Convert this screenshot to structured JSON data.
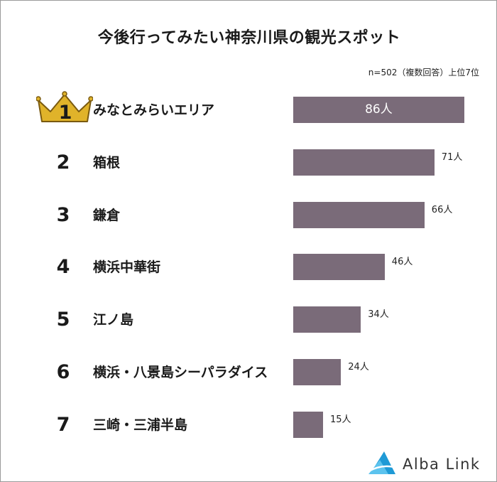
{
  "title": "今後行ってみたい神奈川県の観光スポット",
  "note": "n=502（複数回答）上位7位",
  "brand": "Alba Link",
  "colors": {
    "bar": "#7a6b79",
    "crown": "#e0b32a",
    "logo": "#1f9ad6"
  },
  "chart_data": {
    "type": "bar",
    "orientation": "horizontal",
    "unit": "人",
    "xlim": [
      0,
      90
    ],
    "grid": false,
    "categories": [
      "みなとみらいエリア",
      "箱根",
      "鎌倉",
      "横浜中華街",
      "江ノ島",
      "横浜・八景島シーパラダイス",
      "三崎・三浦半島"
    ],
    "ranks": [
      "1",
      "2",
      "3",
      "4",
      "5",
      "6",
      "7"
    ],
    "values": [
      86,
      71,
      66,
      46,
      34,
      24,
      15
    ],
    "value_labels": [
      "86人",
      "71人",
      "66人",
      "46人",
      "34人",
      "24人",
      "15人"
    ]
  }
}
